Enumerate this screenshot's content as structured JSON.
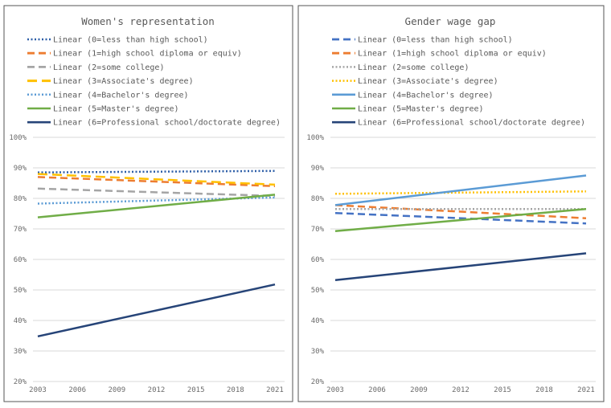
{
  "chart_data": [
    {
      "type": "line",
      "title": "Women's representation",
      "xlabel": "",
      "ylabel": "",
      "x_ticks": [
        "2003",
        "2006",
        "2009",
        "2012",
        "2015",
        "2018",
        "2021"
      ],
      "xlim": [
        2003,
        2021
      ],
      "y_ticks": [
        "100%",
        "90%",
        "80%",
        "70%",
        "60%",
        "50%",
        "40%",
        "30%",
        "20%"
      ],
      "ylim": [
        20,
        100
      ],
      "legend_position": "top",
      "series": [
        {
          "name": "Linear (0=less than high school)",
          "color": "#2e5fa8",
          "style": "dotted",
          "x": [
            2003,
            2021
          ],
          "values": [
            88.5,
            89.0
          ]
        },
        {
          "name": "Linear (1=high school diploma or equiv)",
          "color": "#ed7d31",
          "style": "dashed",
          "x": [
            2003,
            2021
          ],
          "values": [
            87.0,
            84.0
          ]
        },
        {
          "name": "Linear (2=some college)",
          "color": "#a5a5a5",
          "style": "dashed",
          "x": [
            2003,
            2021
          ],
          "values": [
            83.2,
            80.8
          ]
        },
        {
          "name": "Linear (3=Associate's degree)",
          "color": "#ffc000",
          "style": "longdash",
          "x": [
            2003,
            2021
          ],
          "values": [
            88.0,
            84.5
          ]
        },
        {
          "name": "Linear (4=Bachelor's degree)",
          "color": "#5b9bd5",
          "style": "dotted",
          "x": [
            2003,
            2021
          ],
          "values": [
            78.3,
            80.3
          ]
        },
        {
          "name": "Linear (5=Master's degree)",
          "color": "#70ad47",
          "style": "solid",
          "x": [
            2003,
            2021
          ],
          "values": [
            73.8,
            81.2
          ]
        },
        {
          "name": "Linear (6=Professional school/doctorate degree)",
          "color": "#264478",
          "style": "solid",
          "x": [
            2003,
            2021
          ],
          "values": [
            34.8,
            51.8
          ]
        }
      ]
    },
    {
      "type": "line",
      "title": "Gender wage gap",
      "xlabel": "",
      "ylabel": "",
      "x_ticks": [
        "2003",
        "2006",
        "2009",
        "2012",
        "2015",
        "2018",
        "2021"
      ],
      "xlim": [
        2003,
        2021
      ],
      "y_ticks": [
        "100%",
        "90%",
        "80%",
        "70%",
        "60%",
        "50%",
        "40%",
        "30%",
        "20%"
      ],
      "ylim": [
        20,
        100
      ],
      "legend_position": "top",
      "series": [
        {
          "name": "Linear (0=less than high school)",
          "color": "#4472c4",
          "style": "dashed",
          "x": [
            2003,
            2021
          ],
          "values": [
            75.2,
            71.8
          ]
        },
        {
          "name": "Linear (1=high school diploma or equiv)",
          "color": "#ed7d31",
          "style": "dashed",
          "x": [
            2003,
            2021
          ],
          "values": [
            77.8,
            73.5
          ]
        },
        {
          "name": "Linear (2=some college)",
          "color": "#a5a5a5",
          "style": "dotted",
          "x": [
            2003,
            2021
          ],
          "values": [
            76.5,
            76.5
          ]
        },
        {
          "name": "Linear (3=Associate's degree)",
          "color": "#ffc000",
          "style": "dotted",
          "x": [
            2003,
            2021
          ],
          "values": [
            81.5,
            82.3
          ]
        },
        {
          "name": "Linear (4=Bachelor's degree)",
          "color": "#5b9bd5",
          "style": "solid",
          "x": [
            2003,
            2021
          ],
          "values": [
            77.8,
            87.5
          ]
        },
        {
          "name": "Linear (5=Master's degree)",
          "color": "#70ad47",
          "style": "solid",
          "x": [
            2003,
            2021
          ],
          "values": [
            69.3,
            76.5
          ]
        },
        {
          "name": "Linear (6=Professional school/doctorate degree)",
          "color": "#264478",
          "style": "solid",
          "x": [
            2003,
            2021
          ],
          "values": [
            53.2,
            62.0
          ]
        }
      ]
    }
  ]
}
